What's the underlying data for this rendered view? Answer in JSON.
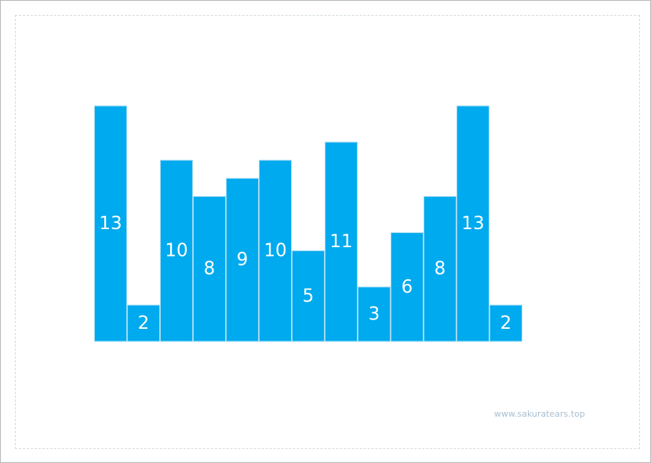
{
  "chart_data": {
    "type": "bar",
    "values": [
      13,
      2,
      10,
      8,
      9,
      10,
      5,
      11,
      3,
      6,
      8,
      13,
      2
    ],
    "data_labels": [
      "13",
      "2",
      "10",
      "8",
      "9",
      "10",
      "5",
      "11",
      "3",
      "6",
      "8",
      "13",
      "2"
    ],
    "ylim": [
      0,
      13
    ],
    "grid": false,
    "bar_color": "#00aaee",
    "bar_border_color": "#9fd9f5",
    "label_color": "#ffffff"
  },
  "watermark": "www.sakuratears.top"
}
